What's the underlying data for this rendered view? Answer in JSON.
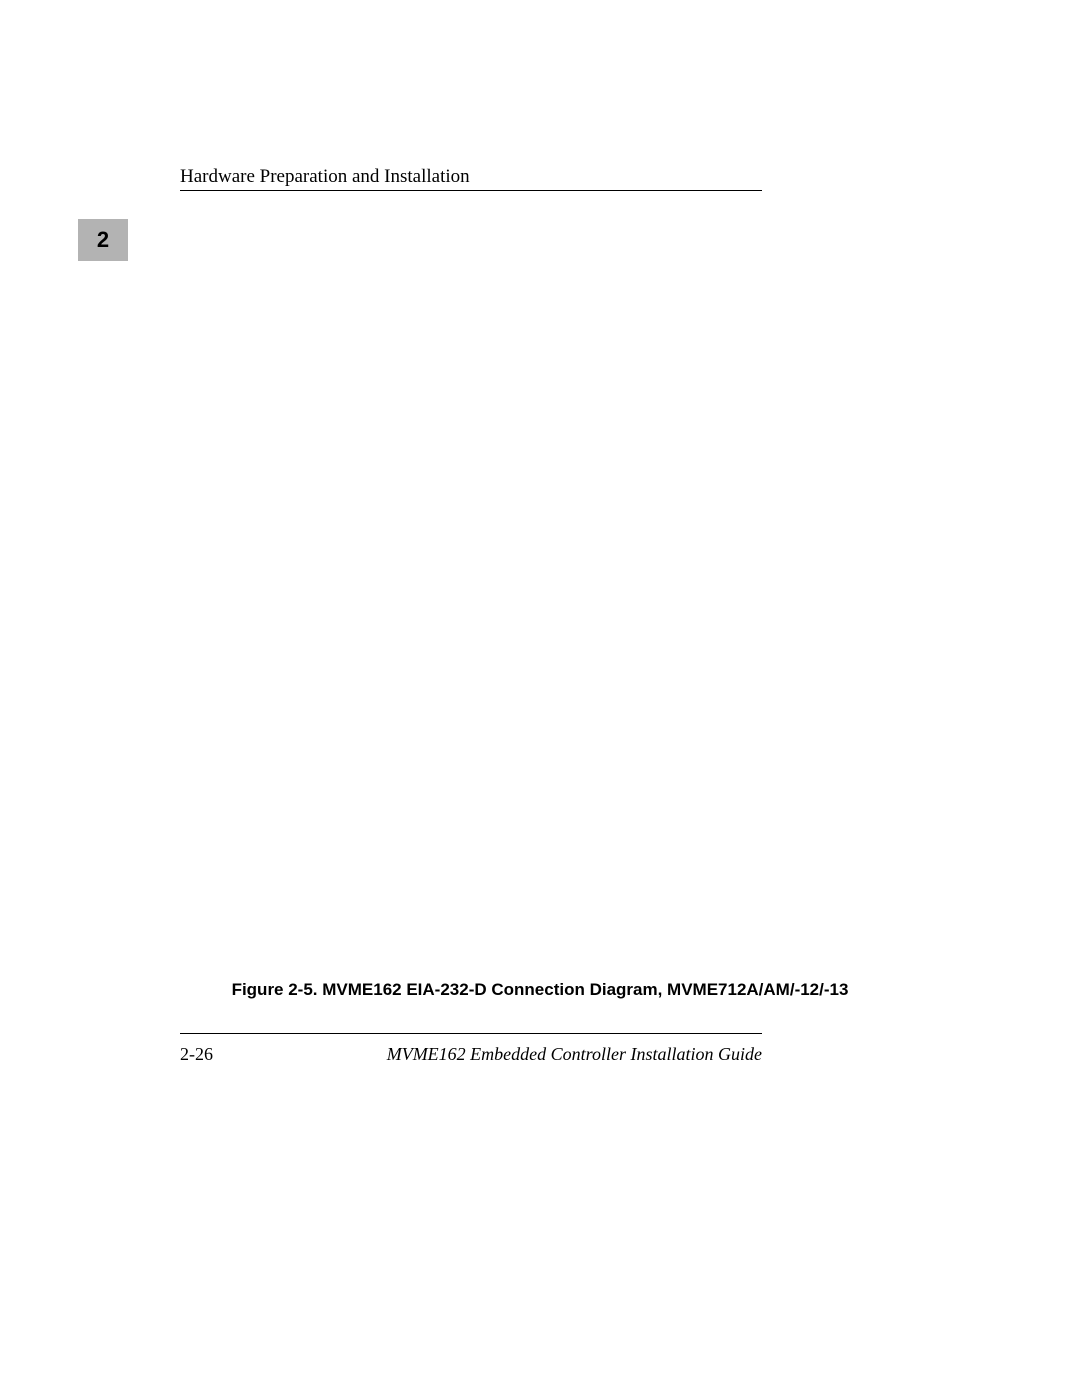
{
  "header": {
    "running_head": "Hardware Preparation and Installation"
  },
  "chapter_tab": {
    "number": "2"
  },
  "figure": {
    "caption": "Figure 2-5.  MVME162 EIA-232-D Connection Diagram, MVME712A/AM/-12/-13"
  },
  "footer": {
    "page_number": "2-26",
    "doc_title": "MVME162 Embedded Controller Installation Guide"
  },
  "colors": {
    "tab_background": "#b3b3b3",
    "text": "#000000",
    "page_background": "#ffffff"
  }
}
